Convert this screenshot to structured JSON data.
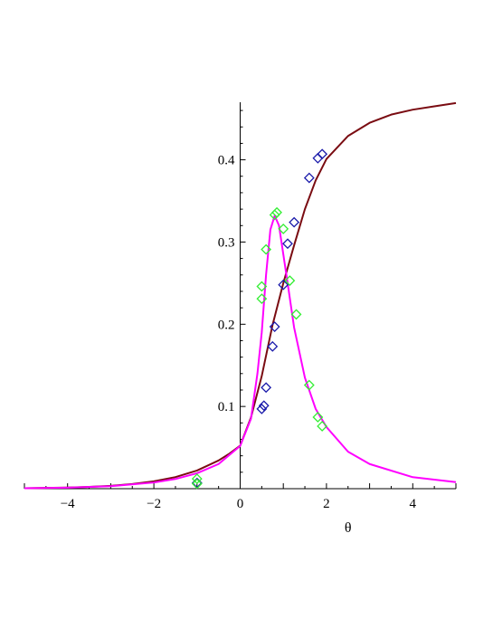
{
  "chart_data": {
    "type": "line",
    "title": "",
    "xlabel": "θ",
    "ylabel": "",
    "xlim": [
      -5,
      5
    ],
    "ylim": [
      0,
      0.47
    ],
    "x_ticks": [
      -4,
      -2,
      0,
      2,
      4
    ],
    "x_tick_labels": [
      "−4",
      "−2",
      "0",
      "2",
      "4"
    ],
    "y_ticks": [
      0.1,
      0.2,
      0.3,
      0.4
    ],
    "y_tick_labels": [
      "0.1",
      "0.2",
      "0.3",
      "0.4"
    ],
    "grid": false,
    "legend": "none",
    "series": [
      {
        "kind": "line",
        "color": "#7a0c12",
        "x": [
          -5.0,
          -4.5,
          -4.0,
          -3.5,
          -3.0,
          -2.5,
          -2.0,
          -1.5,
          -1.0,
          -0.5,
          -0.25,
          0.0,
          0.25,
          0.5,
          0.75,
          1.0,
          1.25,
          1.5,
          1.75,
          2.0,
          2.5,
          3.0,
          3.5,
          4.0,
          4.5,
          5.0
        ],
        "y": [
          0.0006,
          0.0009,
          0.0014,
          0.0022,
          0.0035,
          0.0056,
          0.0089,
          0.0141,
          0.0221,
          0.0343,
          0.0426,
          0.0523,
          0.0865,
          0.137,
          0.199,
          0.25,
          0.296,
          0.34,
          0.375,
          0.401,
          0.429,
          0.445,
          0.455,
          0.461,
          0.465,
          0.469
        ]
      },
      {
        "kind": "line",
        "color": "#ff00ff",
        "x": [
          -5.0,
          -4.0,
          -3.0,
          -2.0,
          -1.5,
          -1.0,
          -0.5,
          0.0,
          0.25,
          0.4,
          0.5,
          0.6,
          0.7,
          0.8,
          0.9,
          1.0,
          1.1,
          1.25,
          1.5,
          1.75,
          2.0,
          2.5,
          3.0,
          4.0,
          5.0
        ],
        "y": [
          0.0005,
          0.0012,
          0.003,
          0.0075,
          0.0118,
          0.0188,
          0.03,
          0.052,
          0.085,
          0.14,
          0.19,
          0.26,
          0.315,
          0.332,
          0.32,
          0.285,
          0.25,
          0.196,
          0.135,
          0.097,
          0.075,
          0.045,
          0.03,
          0.014,
          0.008
        ]
      },
      {
        "kind": "scatter",
        "marker": "diamond",
        "color": "#1a1aaa",
        "x": [
          -1.0,
          0.5,
          0.55,
          0.6,
          0.75,
          0.8,
          1.0,
          1.1,
          1.25,
          1.6,
          1.8,
          1.9
        ],
        "y": [
          0.007,
          0.097,
          0.101,
          0.123,
          0.173,
          0.197,
          0.248,
          0.298,
          0.324,
          0.378,
          0.402,
          0.407
        ]
      },
      {
        "kind": "scatter",
        "marker": "diamond",
        "color": "#33ee33",
        "x": [
          -1.0,
          -1.0,
          0.5,
          0.5,
          0.6,
          0.8,
          0.85,
          1.0,
          1.15,
          1.3,
          1.6,
          1.8,
          1.9
        ],
        "y": [
          0.006,
          0.012,
          0.231,
          0.246,
          0.291,
          0.333,
          0.336,
          0.316,
          0.253,
          0.212,
          0.126,
          0.087,
          0.076
        ]
      }
    ]
  }
}
